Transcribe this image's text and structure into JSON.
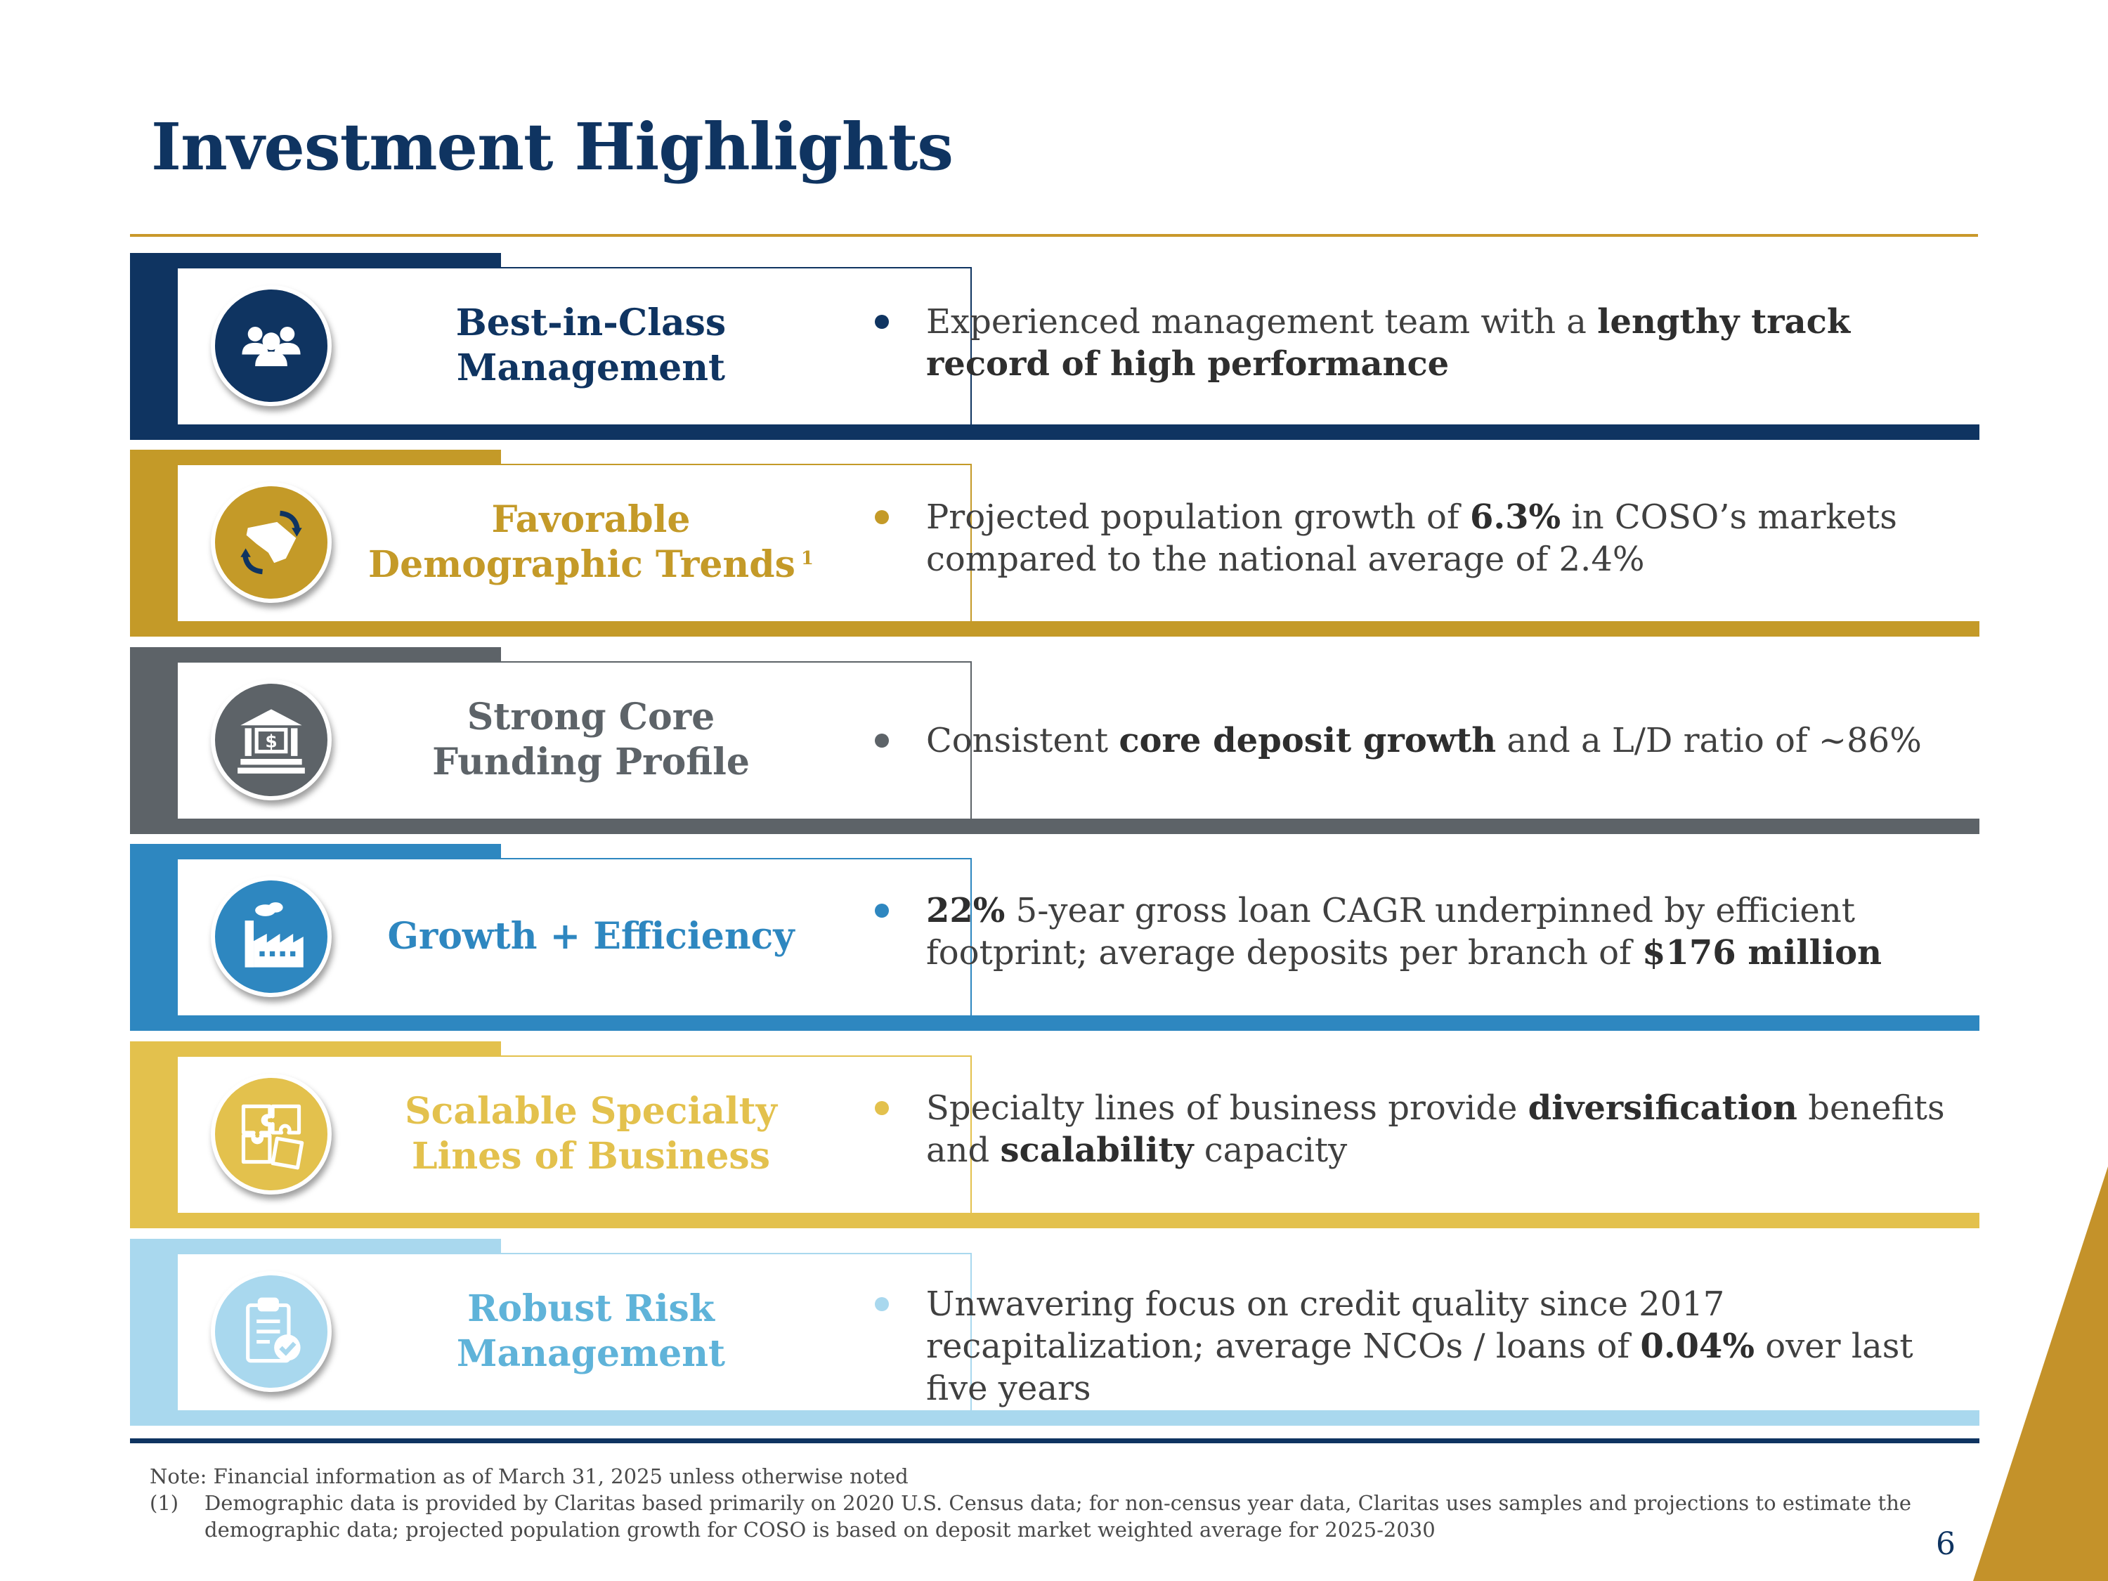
{
  "page": {
    "title": "Investment Highlights",
    "page_number": "6"
  },
  "rows": [
    {
      "label_lines": [
        "Best-in-Class",
        "Management"
      ],
      "icon": "people-icon",
      "color": "#0f3461",
      "bullet_text": [
        {
          "t": "Experienced management team with a ",
          "b": false
        },
        {
          "t": "lengthy track record of high performance",
          "b": true
        }
      ]
    },
    {
      "label_lines": [
        "Favorable",
        "Demographic Trends"
      ],
      "footnote_marker": "1",
      "icon": "state-map-arrows-icon",
      "color": "#c49a28",
      "bullet_text": [
        {
          "t": "Projected population growth of ",
          "b": false
        },
        {
          "t": "6.3%",
          "b": true
        },
        {
          "t": " in COSO’s markets compared to the national average of 2.4%",
          "b": false
        }
      ]
    },
    {
      "label_lines": [
        "Strong Core",
        "Funding Profile"
      ],
      "icon": "bank-icon",
      "color": "#5d6368",
      "bullet_text": [
        {
          "t": "Consistent ",
          "b": false
        },
        {
          "t": "core deposit growth",
          "b": true
        },
        {
          "t": " and a L/D ratio of ~86%",
          "b": false
        }
      ]
    },
    {
      "label_lines": [
        "Growth + Efficiency"
      ],
      "icon": "factory-icon",
      "color": "#2e87c0",
      "bullet_text": [
        {
          "t": "22%",
          "b": true
        },
        {
          "t": " 5-year gross loan CAGR underpinned by efficient footprint; average deposits per branch of ",
          "b": false
        },
        {
          "t": "$176 million",
          "b": true
        }
      ]
    },
    {
      "label_lines": [
        "Scalable Specialty",
        "Lines of Business"
      ],
      "icon": "puzzle-icon",
      "color": "#e3c14d",
      "bullet_text": [
        {
          "t": "Specialty lines of business provide ",
          "b": false
        },
        {
          "t": "diversification",
          "b": true
        },
        {
          "t": " benefits and ",
          "b": false
        },
        {
          "t": "scalability",
          "b": true
        },
        {
          "t": " capacity",
          "b": false
        }
      ]
    },
    {
      "label_lines": [
        "Robust Risk",
        "Management"
      ],
      "icon": "clipboard-check-icon",
      "color": "#a9d8ee",
      "label_color": "#5fb3d9",
      "bullet_text": [
        {
          "t": "Unwavering focus on credit quality since 2017 recapitalization; average NCOs / loans of ",
          "b": false
        },
        {
          "t": "0.04%",
          "b": true
        },
        {
          "t": " over last five years",
          "b": false
        }
      ]
    }
  ],
  "notes": {
    "note": "Note:  Financial information as of March 31, 2025 unless otherwise noted",
    "footnote_number": "(1)",
    "footnote_text": "Demographic data is provided by Claritas based primarily on 2020 U.S. Census data; for non-census year data, Claritas uses samples and projections to estimate the demographic data; projected population growth for COSO is based on deposit market weighted average for 2025-2030"
  },
  "colors": {
    "navy": "#0f3461",
    "gold": "#c49a28",
    "gold_rule": "#c9982a"
  }
}
